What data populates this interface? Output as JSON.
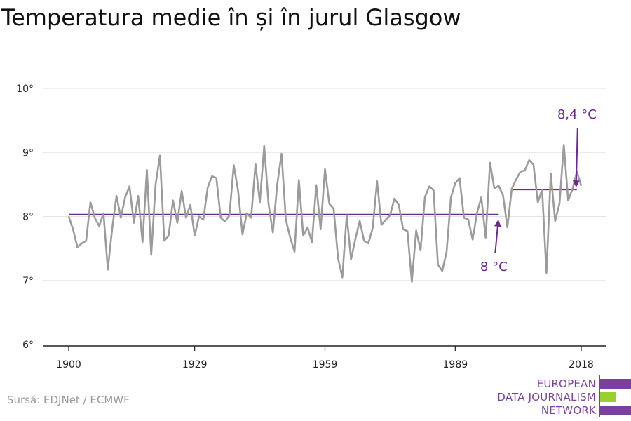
{
  "title": "Temperatura medie în și în jurul Glasgow",
  "source": "Sursă: EDJNet / ECMWF",
  "logo": {
    "lines": [
      "EUROPEAN",
      "DATA JOURNALISM",
      "NETWORK"
    ],
    "colors": [
      "#7b3fa0",
      "#9bcf2e",
      "#7b3fa0"
    ]
  },
  "colors": {
    "series": "#9b9b9b",
    "average": "#6a2a8f",
    "grid": "#e3e3e3",
    "axis": "#222222"
  },
  "chart_data": {
    "type": "line",
    "title": "Temperatura medie în și în jurul Glasgow",
    "xlabel": "",
    "ylabel": "",
    "xlim": [
      1900,
      2018
    ],
    "ylim": [
      6,
      10
    ],
    "x_ticks": [
      1900,
      1929,
      1959,
      1989,
      2018
    ],
    "y_ticks": [
      6,
      7,
      8,
      9,
      10
    ],
    "y_tick_labels": [
      "6°",
      "7°",
      "8°",
      "9°",
      "10°"
    ],
    "grid": true,
    "series": [
      {
        "x": [
          1900,
          1901,
          1902,
          1903,
          1904,
          1905,
          1906,
          1907,
          1908,
          1909,
          1910,
          1911,
          1912,
          1913,
          1914,
          1915,
          1916,
          1917,
          1918,
          1919,
          1920,
          1921,
          1922,
          1923,
          1924,
          1925,
          1926,
          1927,
          1928,
          1929,
          1930,
          1931,
          1932,
          1933,
          1934,
          1935,
          1936,
          1937,
          1938,
          1939,
          1940,
          1941,
          1942,
          1943,
          1944,
          1945,
          1946,
          1947,
          1948,
          1949,
          1950,
          1951,
          1952,
          1953,
          1954,
          1955,
          1956,
          1957,
          1958,
          1959,
          1960,
          1961,
          1962,
          1963,
          1964,
          1965,
          1966,
          1967,
          1968,
          1969,
          1970,
          1971,
          1972,
          1973,
          1974,
          1975,
          1976,
          1977,
          1978,
          1979,
          1980,
          1981,
          1982,
          1983,
          1984,
          1985,
          1986,
          1987,
          1988,
          1989,
          1990,
          1991,
          1992,
          1993,
          1994,
          1995,
          1996,
          1997,
          1998,
          1999,
          2000,
          2001,
          2002,
          2003,
          2004,
          2005,
          2006,
          2007,
          2008,
          2009,
          2010,
          2011,
          2012,
          2013,
          2014,
          2015,
          2016,
          2017,
          2018
        ],
        "values": [
          8.0,
          7.8,
          7.52,
          7.58,
          7.62,
          8.22,
          7.98,
          7.85,
          8.05,
          7.17,
          7.8,
          8.32,
          7.98,
          8.3,
          8.47,
          7.9,
          8.32,
          7.6,
          8.73,
          7.4,
          8.5,
          8.95,
          7.62,
          7.7,
          8.25,
          7.9,
          8.4,
          7.98,
          8.18,
          7.7,
          8.0,
          7.95,
          8.45,
          8.63,
          8.6,
          7.98,
          7.92,
          8.02,
          8.8,
          8.4,
          7.72,
          8.05,
          7.98,
          8.82,
          8.22,
          9.1,
          8.2,
          7.75,
          8.5,
          8.98,
          7.95,
          7.67,
          7.45,
          8.57,
          7.7,
          7.83,
          7.6,
          8.49,
          7.8,
          8.74,
          8.2,
          8.12,
          7.35,
          7.05,
          8.02,
          7.33,
          7.65,
          7.93,
          7.62,
          7.58,
          7.82,
          8.55,
          7.87,
          7.95,
          8.02,
          8.28,
          8.18,
          7.8,
          7.77,
          6.98,
          7.78,
          7.47,
          8.3,
          8.47,
          8.41,
          7.25,
          7.15,
          7.45,
          8.3,
          8.52,
          8.6,
          7.98,
          7.95,
          7.64,
          8.05,
          8.3,
          7.67,
          8.84,
          8.44,
          8.48,
          8.33,
          7.83,
          8.43,
          8.58,
          8.7,
          8.72,
          8.88,
          8.81,
          8.22,
          8.42,
          7.12,
          8.67,
          7.93,
          8.2,
          9.12,
          8.25,
          8.43,
          8.7,
          8.48
        ]
      }
    ],
    "averages": [
      {
        "label": "8 °C",
        "value": 8.03,
        "x_start": 1900,
        "x_end": 1999
      },
      {
        "label": "8,4 °C",
        "value": 8.42,
        "x_start": 2002,
        "x_end": 2017
      }
    ]
  }
}
